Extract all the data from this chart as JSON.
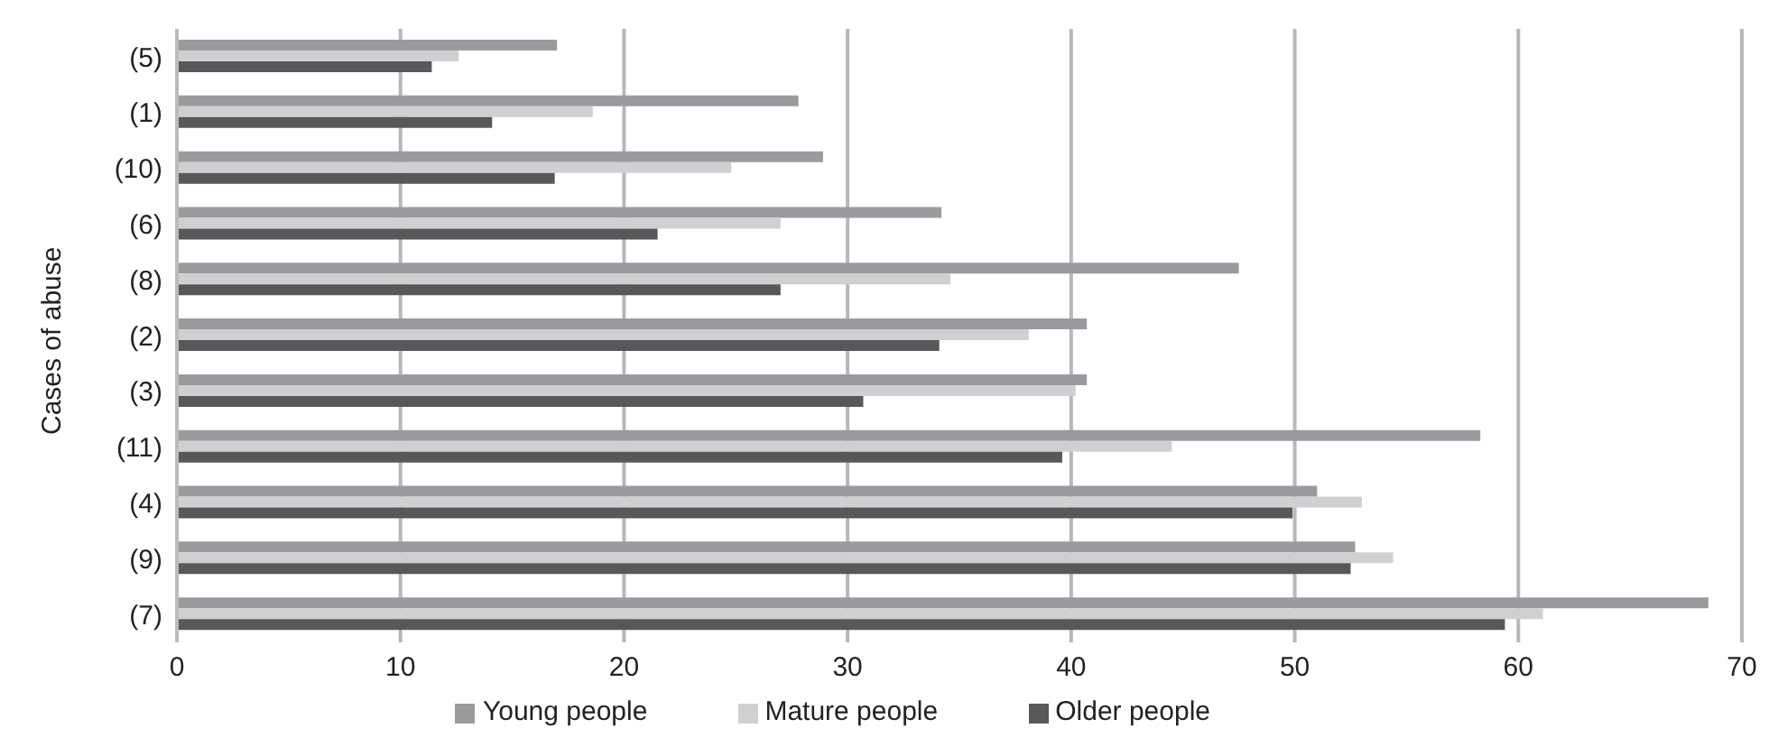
{
  "chart_data": {
    "type": "bar",
    "orientation": "horizontal",
    "ylabel": "Cases of abuse",
    "categories": [
      "(5)",
      "(1)",
      "(10)",
      "(6)",
      "(8)",
      "(2)",
      "(3)",
      "(11)",
      "(4)",
      "(9)",
      "(7)"
    ],
    "series": [
      {
        "name": "Young people",
        "color": "#9b9b9d",
        "values": [
          17.0,
          27.8,
          28.9,
          34.2,
          47.5,
          40.7,
          40.7,
          58.3,
          51.0,
          52.7,
          68.5
        ]
      },
      {
        "name": "Mature people",
        "color": "#d0d0d2",
        "values": [
          12.6,
          18.6,
          24.8,
          27.0,
          34.6,
          38.1,
          40.2,
          44.5,
          53.0,
          54.4,
          61.1
        ]
      },
      {
        "name": "Older people",
        "color": "#58585a",
        "values": [
          11.4,
          14.1,
          16.9,
          21.5,
          27.0,
          34.1,
          30.7,
          39.6,
          49.9,
          52.5,
          59.4
        ]
      }
    ],
    "xlim": [
      0,
      70
    ],
    "xticks": [
      0,
      10,
      20,
      30,
      40,
      50,
      60,
      70
    ],
    "grid": "x",
    "legend": "bottom"
  }
}
